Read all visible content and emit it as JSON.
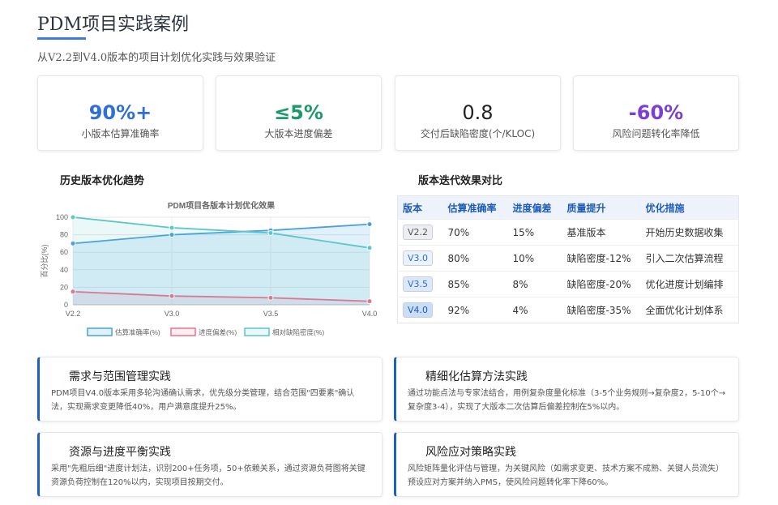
{
  "header": {
    "title": "PDM项目实践案例",
    "subtitle": "从V2.2到V4.0版本的项目计划优化实践与效果验证"
  },
  "kpis": [
    {
      "value": "90%+",
      "label": "小版本估算准确率",
      "color": "#2f6fd8"
    },
    {
      "value": "≤5%",
      "label": "大版本进度偏差",
      "color": "#1c9a6b"
    },
    {
      "value": "0.8",
      "label": "交付后缺陷密度(个/KLOC)",
      "color": "#222222"
    },
    {
      "value": "-60%",
      "label": "风险问题转化率降低",
      "color": "#7b3fd6"
    }
  ],
  "sections": {
    "trend": "历史版本优化趋势",
    "compare": "版本迭代效果对比"
  },
  "chart_data": {
    "type": "area",
    "title": "PDM项目各版本计划优化效果",
    "ylabel": "百分比(%)",
    "categories": [
      "V2.2",
      "V3.0",
      "V3.5",
      "V4.0"
    ],
    "yticks": [
      "0",
      "20",
      "40",
      "60",
      "80",
      "100"
    ],
    "ylim": [
      0,
      100
    ],
    "series": [
      {
        "name": "估算准确率(%)",
        "values": [
          70,
          80,
          85,
          92
        ],
        "color": "#4a9fe0",
        "fill": "rgba(120,190,235,0.22)"
      },
      {
        "name": "进度偏差(%)",
        "values": [
          15,
          10,
          8,
          4
        ],
        "color": "#e8718f",
        "fill": "rgba(232,113,143,0.12)"
      },
      {
        "name": "相对缺陷密度(%)",
        "values": [
          100,
          88,
          82,
          65
        ],
        "color": "#5cc6c8",
        "fill": "rgba(92,198,200,0.12)"
      }
    ]
  },
  "table": {
    "headers": [
      "版本",
      "估算准确率",
      "进度偏差",
      "质量提升",
      "优化措施"
    ],
    "rows": [
      {
        "version": "V2.2",
        "acc": "70%",
        "dev": "15%",
        "quality": "基准版本",
        "measure": "开始历史数据收集",
        "badge_bg": "#eceef2",
        "badge_fg": "#555555"
      },
      {
        "version": "V3.0",
        "acc": "80%",
        "dev": "10%",
        "quality": "缺陷密度-12%",
        "measure": "引入二次估算流程",
        "badge_bg": "#eaf2fd",
        "badge_fg": "#2f6fd8"
      },
      {
        "version": "V3.5",
        "acc": "85%",
        "dev": "8%",
        "quality": "缺陷密度-20%",
        "measure": "优化进度计划编排",
        "badge_bg": "#dbe9fb",
        "badge_fg": "#2f6fd8"
      },
      {
        "version": "V4.0",
        "acc": "92%",
        "dev": "4%",
        "quality": "缺陷密度-35%",
        "measure": "全面优化计划体系",
        "badge_bg": "#c9defa",
        "badge_fg": "#1e5bb8"
      }
    ]
  },
  "cards": [
    {
      "title": "需求与范围管理实践",
      "desc": "PDM项目V4.0版本采用多轮沟通确认需求，优先级分类管理，结合范围\"四要素\"确认法，实现需求变更降低40%，用户满意度提升25%。"
    },
    {
      "title": "精细化估算方法实践",
      "desc": "通过功能点法与专家法结合，用例复杂度量化标准（3-5个业务规则→复杂度2，5-10个→复杂度3-4），实现了大版本二次估算后偏差控制在5%以内。"
    },
    {
      "title": "资源与进度平衡实践",
      "desc": "采用\"先粗后细\"进度计划法，识别200+任务项，50+依赖关系，通过资源负荷图将关键资源负荷控制在120%以内，实现项目按期交付。"
    },
    {
      "title": "风险应对策略实践",
      "desc": "风险矩阵量化评估与管理，为关键风险（如需求变更、技术方案不成熟、关键人员流失）预设应对方案并纳入PMS，使风险问题转化率下降60%。"
    }
  ]
}
